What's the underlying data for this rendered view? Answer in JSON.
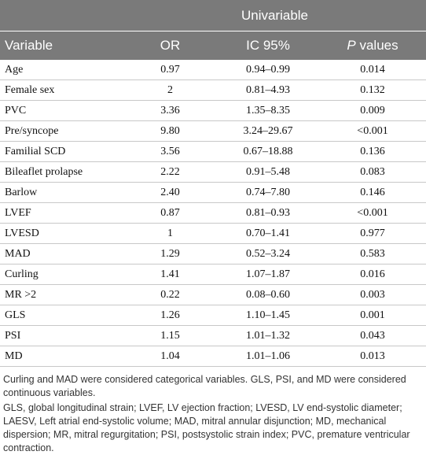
{
  "table": {
    "group_header": "Univariable",
    "columns": [
      "Variable",
      "OR",
      "IC 95%",
      "P values"
    ],
    "rows": [
      [
        "Age",
        "0.97",
        "0.94–0.99",
        "0.014"
      ],
      [
        "Female sex",
        "2",
        "0.81–4.93",
        "0.132"
      ],
      [
        "PVC",
        "3.36",
        "1.35–8.35",
        "0.009"
      ],
      [
        "Pre/syncope",
        "9.80",
        "3.24–29.67",
        "<0.001"
      ],
      [
        "Familial SCD",
        "3.56",
        "0.67–18.88",
        "0.136"
      ],
      [
        "Bileaflet prolapse",
        "2.22",
        "0.91–5.48",
        "0.083"
      ],
      [
        "Barlow",
        "2.40",
        "0.74–7.80",
        "0.146"
      ],
      [
        "LVEF",
        "0.87",
        "0.81–0.93",
        "<0.001"
      ],
      [
        "LVESD",
        "1",
        "0.70–1.41",
        "0.977"
      ],
      [
        "MAD",
        "1.29",
        "0.52–3.24",
        "0.583"
      ],
      [
        "Curling",
        "1.41",
        "1.07–1.87",
        "0.016"
      ],
      [
        "MR >2",
        "0.22",
        "0.08–0.60",
        "0.003"
      ],
      [
        "GLS",
        "1.26",
        "1.10–1.45",
        "0.001"
      ],
      [
        "PSI",
        "1.15",
        "1.01–1.32",
        "0.043"
      ],
      [
        "MD",
        "1.04",
        "1.01–1.06",
        "0.013"
      ]
    ]
  },
  "footnotes": [
    "Curling and MAD were considered categorical variables. GLS, PSI, and MD were considered continuous variables.",
    "GLS, global longitudinal strain; LVEF, LV ejection fraction; LVESD, LV end-systolic diameter; LAESV, Left atrial end-systolic volume; MAD, mitral annular disjunction; MD, mechanical dispersion; MR, mitral regurgitation; PSI, postsystolic strain index; PVC, premature ventricular contraction."
  ]
}
